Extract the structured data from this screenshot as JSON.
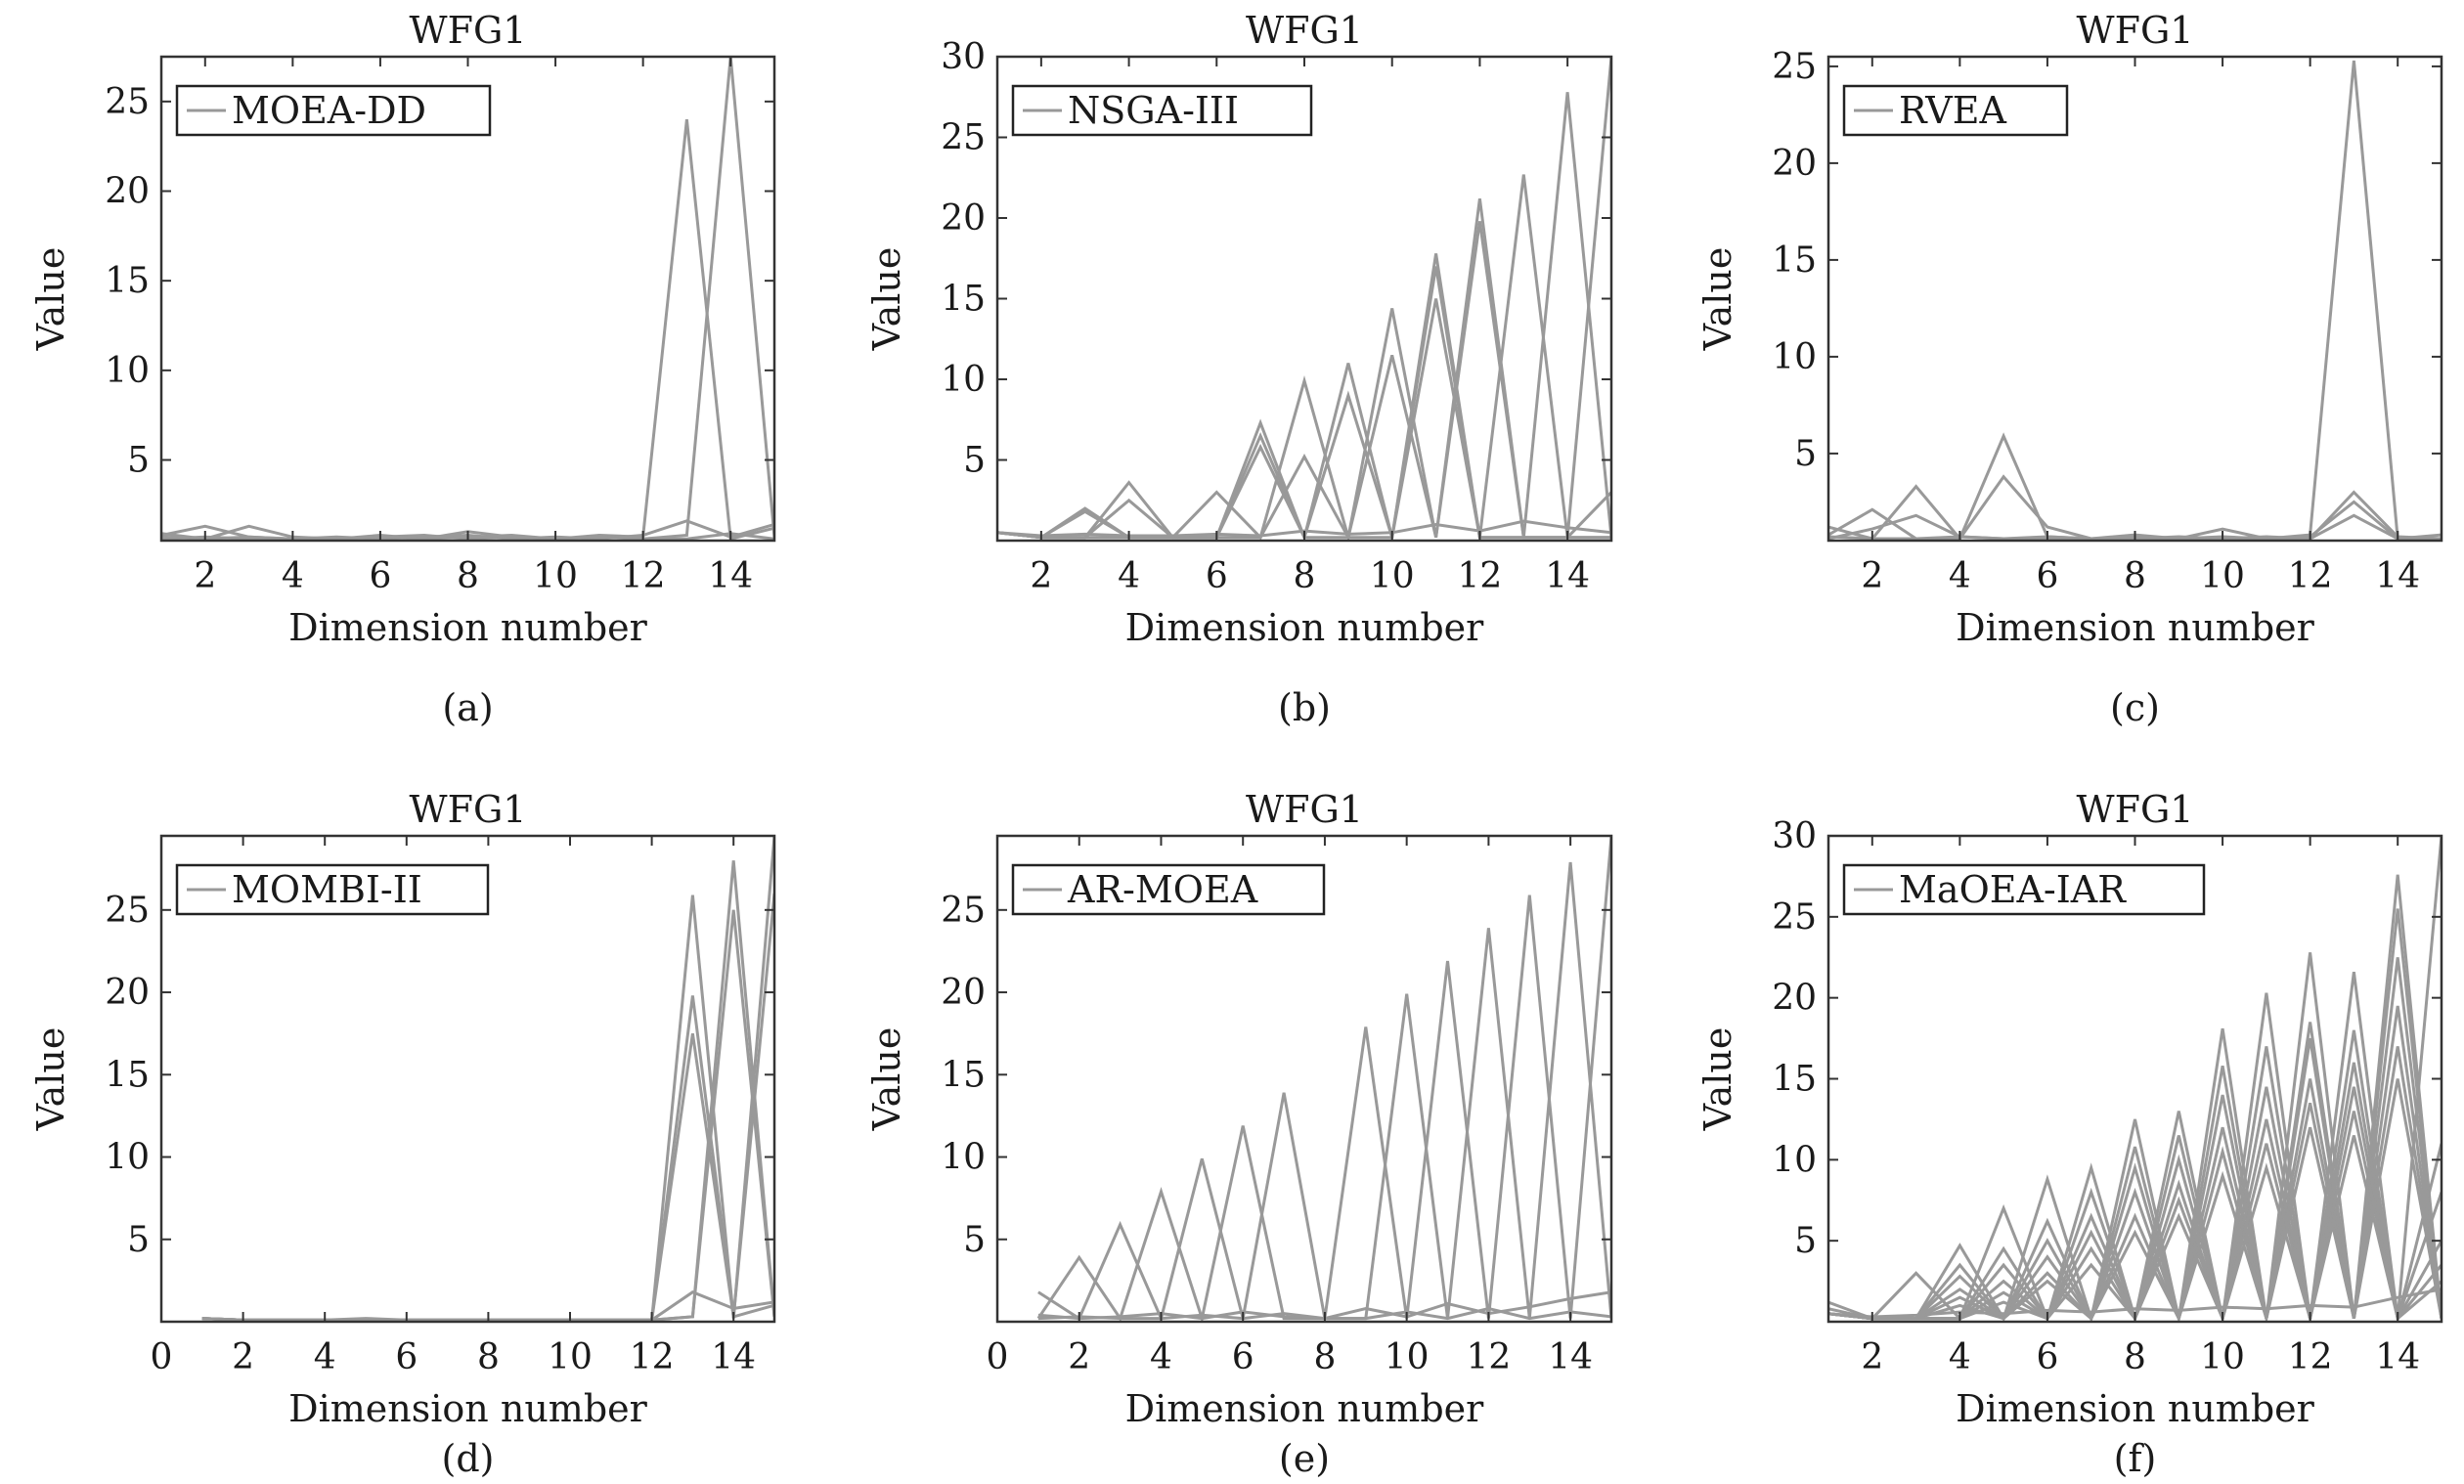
{
  "figure": {
    "panels": [
      {
        "caption": "(a)"
      },
      {
        "caption": "(b)"
      },
      {
        "caption": "(c)"
      },
      {
        "caption": "(d)"
      },
      {
        "caption": "(e)"
      },
      {
        "caption": "(f)"
      }
    ]
  },
  "colors": {
    "line": "#999999",
    "axes": "#333333",
    "text": "#1a1a1a"
  },
  "chart_data": [
    {
      "type": "line",
      "title": "WFG1",
      "xlabel": "Dimension number",
      "ylabel": "Value",
      "legend": "MOEA-DD",
      "legend_position": "top-left",
      "xlim": [
        1,
        15
      ],
      "ylim": [
        0.5,
        27.5
      ],
      "xticks": [
        "2",
        "4",
        "6",
        "8",
        "10",
        "12",
        "14"
      ],
      "yticks": [
        "5",
        "10",
        "15",
        "20",
        "25"
      ],
      "x": [
        1,
        2,
        3,
        4,
        5,
        6,
        7,
        8,
        9,
        10,
        11,
        12,
        13,
        14,
        15
      ],
      "series": [
        {
          "values": [
            0.8,
            1.3,
            0.7,
            0.6,
            0.6,
            0.8,
            0.6,
            1.0,
            0.7,
            0.6,
            0.8,
            0.7,
            24.0,
            0.6,
            1.2
          ]
        },
        {
          "values": [
            0.7,
            0.6,
            1.3,
            0.7,
            0.6,
            0.7,
            0.8,
            0.6,
            0.7,
            0.6,
            0.7,
            0.6,
            0.8,
            27.5,
            0.7
          ]
        },
        {
          "values": [
            0.6,
            0.7,
            0.6,
            0.6,
            0.7,
            0.6,
            0.7,
            0.8,
            0.6,
            0.7,
            0.6,
            0.8,
            1.6,
            0.7,
            1.4
          ]
        },
        {
          "values": [
            0.9,
            0.6,
            0.7,
            0.6,
            0.6,
            0.7,
            0.6,
            0.7,
            0.8,
            0.6,
            0.7,
            0.6,
            0.6,
            0.9,
            0.6
          ]
        }
      ]
    },
    {
      "type": "line",
      "title": "WFG1",
      "xlabel": "Dimension number",
      "ylabel": "Value",
      "legend": "NSGA-III",
      "legend_position": "top-left",
      "xlim": [
        1,
        15
      ],
      "ylim": [
        0,
        30
      ],
      "xticks": [
        "2",
        "4",
        "6",
        "8",
        "10",
        "12",
        "14"
      ],
      "yticks": [
        "5",
        "10",
        "15",
        "20",
        "25",
        "30"
      ],
      "x": [
        1,
        2,
        3,
        4,
        5,
        6,
        7,
        8,
        9,
        10,
        11,
        12,
        13,
        14,
        15
      ],
      "series": [
        {
          "values": [
            0.5,
            0.2,
            2.0,
            0.2,
            0.2,
            0.2,
            7.3,
            0.2,
            11.0,
            0.2,
            17.8,
            0.2,
            22.7,
            0.2,
            30.0
          ]
        },
        {
          "values": [
            0.5,
            0.2,
            0.2,
            3.6,
            0.2,
            0.2,
            0.2,
            9.9,
            0.2,
            14.4,
            0.2,
            21.2,
            0.2,
            27.8,
            0.2
          ]
        },
        {
          "values": [
            0.5,
            0.2,
            1.8,
            0.2,
            0.2,
            3.0,
            0.2,
            5.2,
            0.2,
            11.5,
            0.2,
            19.8,
            0.2,
            0.2,
            3.0
          ]
        },
        {
          "values": [
            0.5,
            0.2,
            0.2,
            2.5,
            0.2,
            0.2,
            6.5,
            0.2,
            9.0,
            0.2,
            15.0,
            0.2,
            0.2,
            0.2,
            0.2
          ]
        },
        {
          "values": [
            0.5,
            0.2,
            0.2,
            0.2,
            0.2,
            0.2,
            5.8,
            0.2,
            0.2,
            0.2,
            17.0,
            0.2,
            0.2,
            0.2,
            0.2
          ]
        },
        {
          "values": [
            0.5,
            0.3,
            0.4,
            0.3,
            0.3,
            0.4,
            0.3,
            0.6,
            0.4,
            0.5,
            1.0,
            0.6,
            1.2,
            0.8,
            0.5
          ]
        }
      ]
    },
    {
      "type": "line",
      "title": "WFG1",
      "xlabel": "Dimension number",
      "ylabel": "Value",
      "legend": "RVEA",
      "legend_position": "top-left",
      "xlim": [
        1,
        15
      ],
      "ylim": [
        0.5,
        25.5
      ],
      "xticks": [
        "2",
        "4",
        "6",
        "8",
        "10",
        "12",
        "14"
      ],
      "yticks": [
        "5",
        "10",
        "15",
        "20",
        "25"
      ],
      "x": [
        1,
        2,
        3,
        4,
        5,
        6,
        7,
        8,
        9,
        10,
        11,
        12,
        13,
        14,
        15
      ],
      "series": [
        {
          "values": [
            0.8,
            2.1,
            0.6,
            0.6,
            5.9,
            0.7,
            0.6,
            0.8,
            0.6,
            1.1,
            0.6,
            0.8,
            25.3,
            0.6,
            0.8
          ]
        },
        {
          "values": [
            1.2,
            0.6,
            3.3,
            0.6,
            3.8,
            1.2,
            0.6,
            0.6,
            0.7,
            0.6,
            0.7,
            0.6,
            3.0,
            0.7,
            0.6
          ]
        },
        {
          "values": [
            0.6,
            1.1,
            1.8,
            0.7,
            0.6,
            0.6,
            0.6,
            0.7,
            0.6,
            0.6,
            0.6,
            0.7,
            2.5,
            0.6,
            0.6
          ]
        },
        {
          "values": [
            0.7,
            0.6,
            0.6,
            0.7,
            0.6,
            0.7,
            0.6,
            0.6,
            0.6,
            0.7,
            0.6,
            0.6,
            1.8,
            0.6,
            0.6
          ]
        }
      ]
    },
    {
      "type": "line",
      "title": "WFG1",
      "xlabel": "Dimension number",
      "ylabel": "Value",
      "legend": "MOMBI-II",
      "legend_position": "top-left",
      "xlim": [
        0,
        15
      ],
      "ylim": [
        0,
        29.5
      ],
      "xticks": [
        "0",
        "2",
        "4",
        "6",
        "8",
        "10",
        "12",
        "14"
      ],
      "yticks": [
        "5",
        "10",
        "15",
        "20",
        "25"
      ],
      "x": [
        1,
        2,
        3,
        4,
        5,
        6,
        7,
        8,
        9,
        10,
        11,
        12,
        13,
        14,
        15
      ],
      "series": [
        {
          "values": [
            0.2,
            0.1,
            0.1,
            0.1,
            0.2,
            0.1,
            0.1,
            0.1,
            0.1,
            0.1,
            0.1,
            0.1,
            25.9,
            0.2,
            29.5
          ]
        },
        {
          "values": [
            0.2,
            0.1,
            0.1,
            0.1,
            0.1,
            0.1,
            0.1,
            0.1,
            0.1,
            0.1,
            0.1,
            0.1,
            0.3,
            28.0,
            0.3
          ]
        },
        {
          "values": [
            0.2,
            0.1,
            0.1,
            0.1,
            0.1,
            0.1,
            0.1,
            0.1,
            0.1,
            0.1,
            0.1,
            0.1,
            19.8,
            0.3,
            26.0
          ]
        },
        {
          "values": [
            0.2,
            0.1,
            0.1,
            0.1,
            0.1,
            0.1,
            0.1,
            0.1,
            0.1,
            0.1,
            0.1,
            0.1,
            0.3,
            25.0,
            0.3
          ]
        },
        {
          "values": [
            0.2,
            0.1,
            0.1,
            0.1,
            0.1,
            0.1,
            0.1,
            0.1,
            0.1,
            0.1,
            0.1,
            0.1,
            17.5,
            0.3,
            1.0
          ]
        },
        {
          "values": [
            0.2,
            0.1,
            0.1,
            0.1,
            0.1,
            0.1,
            0.1,
            0.1,
            0.1,
            0.1,
            0.1,
            0.1,
            1.8,
            0.8,
            1.2
          ]
        }
      ]
    },
    {
      "type": "line",
      "title": "WFG1",
      "xlabel": "Dimension number",
      "ylabel": "Value",
      "legend": "AR-MOEA",
      "legend_position": "top-left",
      "xlim": [
        0,
        15
      ],
      "ylim": [
        0,
        29.5
      ],
      "xticks": [
        "0",
        "2",
        "4",
        "6",
        "8",
        "10",
        "12",
        "14"
      ],
      "yticks": [
        "5",
        "10",
        "15",
        "20",
        "25"
      ],
      "x": [
        1,
        2,
        3,
        4,
        5,
        6,
        7,
        8,
        9,
        10,
        11,
        12,
        13,
        14,
        15
      ],
      "series": [
        {
          "values": [
            1.8,
            0.2,
            5.9,
            0.2,
            9.9,
            0.2,
            13.9,
            0.2,
            17.9,
            0.2,
            21.9,
            0.2,
            25.9,
            0.2,
            29.5
          ]
        },
        {
          "values": [
            0.2,
            3.9,
            0.2,
            7.9,
            0.2,
            11.9,
            0.2,
            0.2,
            0.2,
            19.9,
            0.2,
            23.9,
            0.2,
            27.9,
            0.2
          ]
        },
        {
          "values": [
            0.4,
            0.2,
            0.3,
            0.5,
            0.2,
            0.6,
            0.3,
            0.2,
            0.8,
            0.3,
            1.1,
            0.5,
            0.9,
            1.4,
            1.8
          ]
        },
        {
          "values": [
            0.2,
            0.3,
            0.2,
            0.2,
            0.4,
            0.2,
            0.5,
            0.2,
            0.2,
            0.6,
            0.2,
            0.8,
            0.2,
            0.6,
            0.3
          ]
        }
      ]
    },
    {
      "type": "line",
      "title": "WFG1",
      "xlabel": "Dimension number",
      "ylabel": "Value",
      "legend": "MaOEA-IAR",
      "legend_position": "top-left",
      "xlim": [
        1,
        15
      ],
      "ylim": [
        0,
        30
      ],
      "xticks": [
        "2",
        "4",
        "6",
        "8",
        "10",
        "12",
        "14"
      ],
      "yticks": [
        "5",
        "10",
        "15",
        "20",
        "25",
        "30"
      ],
      "x": [
        1,
        2,
        3,
        4,
        5,
        6,
        7,
        8,
        9,
        10,
        11,
        12,
        13,
        14,
        15
      ],
      "series": [
        {
          "values": [
            1.2,
            0.2,
            3.0,
            0.2,
            7.0,
            0.2,
            9.5,
            0.2,
            13.0,
            0.2,
            20.3,
            0.2,
            21.6,
            0.2,
            30.0
          ]
        },
        {
          "values": [
            0.8,
            0.2,
            0.2,
            4.7,
            0.2,
            8.8,
            0.2,
            12.5,
            0.2,
            18.1,
            0.2,
            22.8,
            0.2,
            27.6,
            0.2
          ]
        },
        {
          "values": [
            0.5,
            0.2,
            0.2,
            3.5,
            0.2,
            6.2,
            0.2,
            10.8,
            0.2,
            15.8,
            0.2,
            18.5,
            0.2,
            25.5,
            0.2
          ]
        },
        {
          "values": [
            0.5,
            0.2,
            0.2,
            0.2,
            4.5,
            0.2,
            8.0,
            0.2,
            11.5,
            0.2,
            17.0,
            0.2,
            18.0,
            0.2,
            11.0
          ]
        },
        {
          "values": [
            0.5,
            0.2,
            0.2,
            2.8,
            0.2,
            5.0,
            0.2,
            9.5,
            0.2,
            14.0,
            0.2,
            17.5,
            0.2,
            22.5,
            0.2
          ]
        },
        {
          "values": [
            0.5,
            0.2,
            0.2,
            0.2,
            3.5,
            0.2,
            6.5,
            0.2,
            10.0,
            0.2,
            14.5,
            0.2,
            16.0,
            0.2,
            8.0
          ]
        },
        {
          "values": [
            0.5,
            0.2,
            0.2,
            2.0,
            0.2,
            4.0,
            0.2,
            8.0,
            0.2,
            12.0,
            0.2,
            15.0,
            0.2,
            19.5,
            0.2
          ]
        },
        {
          "values": [
            0.5,
            0.2,
            0.2,
            0.2,
            2.5,
            0.2,
            5.5,
            0.2,
            8.5,
            0.2,
            12.5,
            0.2,
            14.5,
            0.2,
            5.0
          ]
        },
        {
          "values": [
            0.5,
            0.2,
            0.2,
            1.5,
            0.2,
            3.0,
            0.2,
            6.5,
            0.2,
            10.5,
            0.2,
            13.5,
            0.2,
            17.0,
            0.2
          ]
        },
        {
          "values": [
            0.5,
            0.2,
            0.2,
            0.2,
            1.8,
            0.2,
            4.5,
            0.2,
            7.5,
            0.2,
            11.0,
            0.2,
            13.0,
            0.2,
            3.5
          ]
        },
        {
          "values": [
            0.5,
            0.2,
            0.2,
            1.0,
            0.2,
            2.5,
            0.2,
            5.5,
            0.2,
            9.0,
            0.2,
            12.0,
            0.2,
            15.0,
            0.2
          ]
        },
        {
          "values": [
            0.5,
            0.2,
            0.2,
            0.2,
            1.2,
            0.2,
            3.5,
            0.2,
            6.5,
            0.2,
            9.5,
            0.2,
            11.5,
            0.2,
            2.5
          ]
        },
        {
          "values": [
            0.5,
            0.3,
            0.4,
            0.6,
            0.5,
            0.7,
            0.6,
            0.8,
            0.7,
            0.9,
            0.8,
            1.0,
            0.9,
            1.5,
            2.0
          ]
        }
      ]
    }
  ]
}
